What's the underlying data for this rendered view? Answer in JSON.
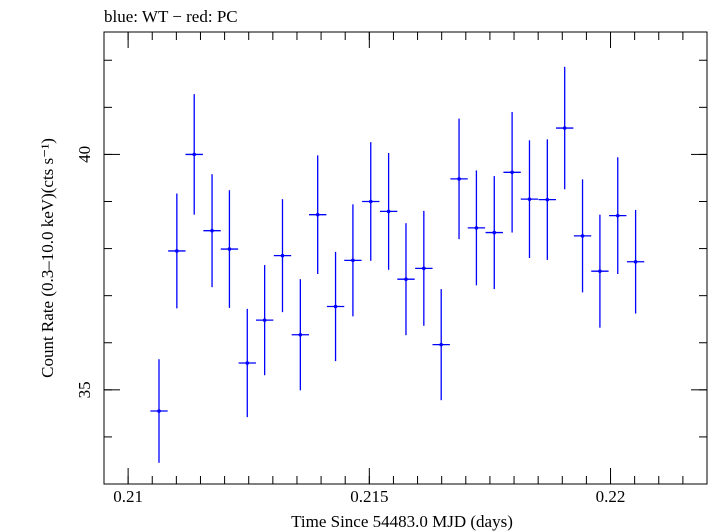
{
  "chart_data": {
    "type": "scatter",
    "title": "blue: WT − red: PC",
    "xlabel": "Time Since 54483.0 MJD (days)",
    "ylabel": "Count Rate (0.3–10.0 keV)(cts s⁻¹)",
    "xlim": [
      0.2095,
      0.222
    ],
    "ylim": [
      33,
      42.6
    ],
    "x_ticks": [
      0.21,
      0.215,
      0.22
    ],
    "x_tick_labels": [
      "0.21",
      "0.215",
      "0.22"
    ],
    "y_ticks": [
      35,
      40
    ],
    "y_tick_labels": [
      "35",
      "40"
    ],
    "grid": false,
    "colors": {
      "WT": "#0000ff"
    },
    "series": [
      {
        "name": "WT",
        "x_err": 0.00018,
        "points": [
          {
            "x": 0.21064,
            "y": 34.55,
            "yerr": 1.1
          },
          {
            "x": 0.21101,
            "y": 37.95,
            "yerr": 1.22
          },
          {
            "x": 0.21137,
            "y": 40.0,
            "yerr": 1.28
          },
          {
            "x": 0.21174,
            "y": 38.38,
            "yerr": 1.2
          },
          {
            "x": 0.2121,
            "y": 37.99,
            "yerr": 1.25
          },
          {
            "x": 0.21247,
            "y": 35.57,
            "yerr": 1.15
          },
          {
            "x": 0.21283,
            "y": 36.48,
            "yerr": 1.17
          },
          {
            "x": 0.2132,
            "y": 37.85,
            "yerr": 1.2
          },
          {
            "x": 0.21357,
            "y": 36.17,
            "yerr": 1.18
          },
          {
            "x": 0.21393,
            "y": 38.72,
            "yerr": 1.26
          },
          {
            "x": 0.2143,
            "y": 36.77,
            "yerr": 1.16
          },
          {
            "x": 0.21466,
            "y": 37.75,
            "yerr": 1.19
          },
          {
            "x": 0.21503,
            "y": 39.0,
            "yerr": 1.26
          },
          {
            "x": 0.2154,
            "y": 38.79,
            "yerr": 1.24
          },
          {
            "x": 0.21576,
            "y": 37.35,
            "yerr": 1.19
          },
          {
            "x": 0.21613,
            "y": 37.58,
            "yerr": 1.22
          },
          {
            "x": 0.21649,
            "y": 35.96,
            "yerr": 1.18
          },
          {
            "x": 0.21686,
            "y": 39.48,
            "yerr": 1.28
          },
          {
            "x": 0.21722,
            "y": 38.44,
            "yerr": 1.22
          },
          {
            "x": 0.21759,
            "y": 38.34,
            "yerr": 1.2
          },
          {
            "x": 0.21796,
            "y": 39.62,
            "yerr": 1.28
          },
          {
            "x": 0.21832,
            "y": 39.05,
            "yerr": 1.25
          },
          {
            "x": 0.21869,
            "y": 39.04,
            "yerr": 1.28
          },
          {
            "x": 0.21905,
            "y": 40.56,
            "yerr": 1.3
          },
          {
            "x": 0.21942,
            "y": 38.27,
            "yerr": 1.2
          },
          {
            "x": 0.21978,
            "y": 37.52,
            "yerr": 1.2
          },
          {
            "x": 0.22015,
            "y": 38.7,
            "yerr": 1.24
          },
          {
            "x": 0.22052,
            "y": 37.72,
            "yerr": 1.1
          }
        ]
      }
    ]
  }
}
